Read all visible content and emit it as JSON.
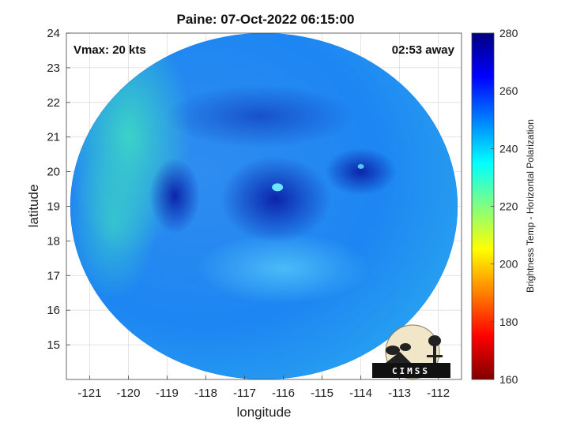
{
  "chart_data": {
    "type": "heatmap",
    "title": "Paine: 07-Oct-2022 06:15:00",
    "xlabel": "longitude",
    "ylabel": "latitude",
    "xlim": [
      -121.6,
      -111.4
    ],
    "ylim": [
      14,
      24
    ],
    "xticks": [
      -121,
      -120,
      -119,
      -118,
      -117,
      -116,
      -115,
      -114,
      -113,
      -112
    ],
    "yticks": [
      15,
      16,
      17,
      18,
      19,
      20,
      21,
      22,
      23,
      24
    ],
    "grid": true,
    "annotations": {
      "top_left": "Vmax: 20 kts",
      "top_right": "02:53 away"
    },
    "colorbar": {
      "label": "Brightness Temp - Horizontal Polarization",
      "range": [
        160,
        280
      ],
      "ticks": [
        160,
        180,
        200,
        220,
        240,
        260,
        280
      ],
      "colormap": "jet"
    },
    "swath": {
      "center_lon": -116.5,
      "center_lat": 19.0,
      "radius_lon": 5.0,
      "radius_lat": 5.0,
      "background_value": 248
    },
    "features": [
      {
        "name": "storm-core",
        "lon": -116.2,
        "lat": 19.2,
        "value": 268
      },
      {
        "name": "western-cloud-band",
        "lon": -118.8,
        "lat": 19.3,
        "value": 265
      },
      {
        "name": "eastern-cloud-cluster",
        "lon": -114.0,
        "lat": 20.0,
        "value": 262
      },
      {
        "name": "northwest-warm-region",
        "lon": -120.0,
        "lat": 21.0,
        "value": 236
      }
    ]
  },
  "logo": {
    "text": "CIMSS"
  }
}
